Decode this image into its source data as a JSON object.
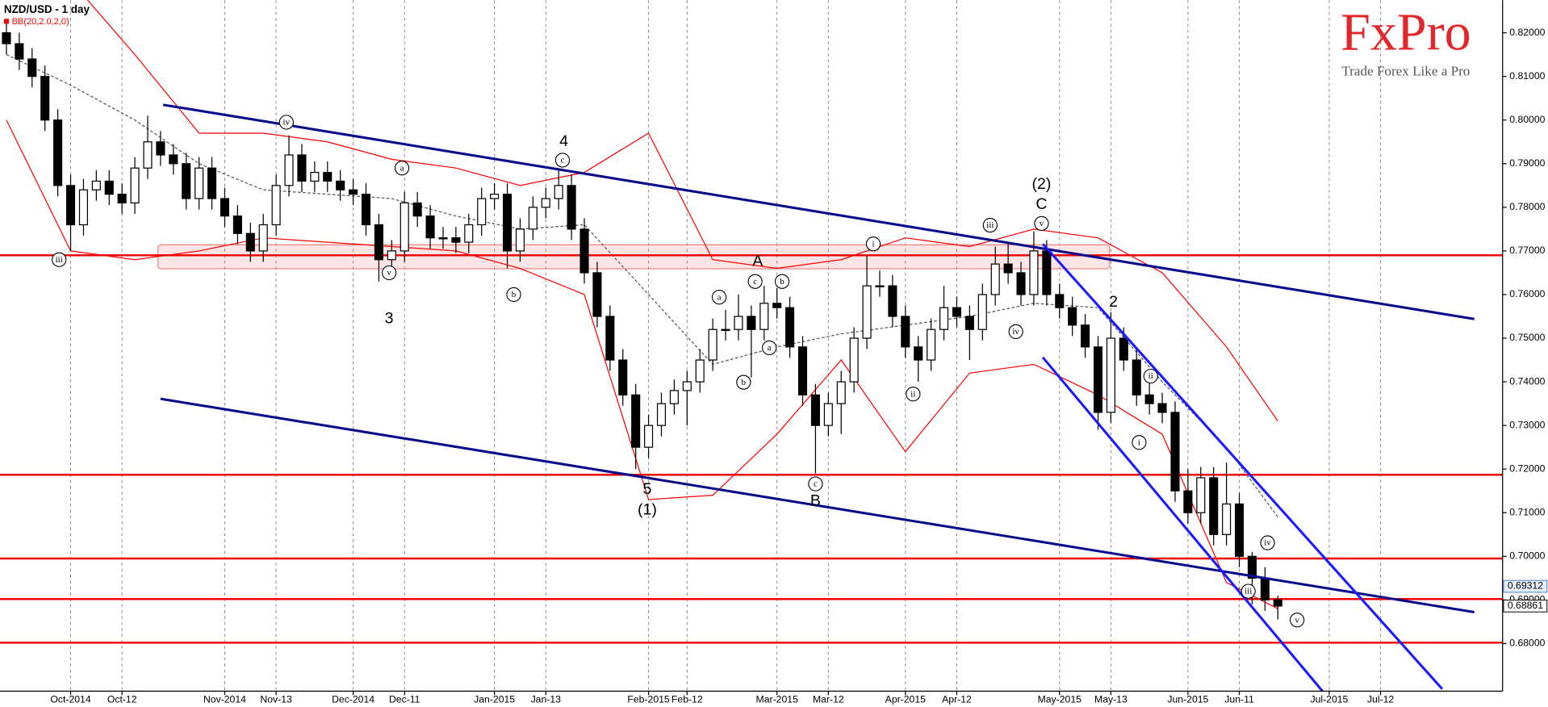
{
  "chart_data": {
    "type": "candlestick",
    "title": "NZD/USD - 1 day",
    "indicator": "BB(20,2.0,2,0)",
    "categories": [
      null,
      null,
      null,
      null,
      null,
      "Oct-2014",
      null,
      null,
      null,
      "Oct-12",
      null,
      null,
      null,
      null,
      null,
      null,
      null,
      "Nov-2014",
      null,
      null,
      null,
      "Nov-13",
      null,
      null,
      null,
      null,
      null,
      "Dec-2014",
      null,
      null,
      null,
      "Dec-11",
      null,
      null,
      null,
      null,
      null,
      null,
      "Jan-2015",
      null,
      null,
      null,
      "Jan-13",
      null,
      null,
      null,
      null,
      null,
      null,
      null,
      "Feb-2015",
      null,
      null,
      "Feb-12",
      null,
      null,
      null,
      null,
      null,
      null,
      "Mar-2015",
      null,
      null,
      null,
      "Mar-12",
      null,
      null,
      null,
      null,
      null,
      "Apr-2015",
      null,
      null,
      null,
      "Apr-12",
      null,
      null,
      null,
      null,
      null,
      null,
      null,
      "May-2015",
      null,
      null,
      null,
      "May-13",
      null,
      null,
      null,
      null,
      null,
      "Jun-2015",
      null,
      null,
      null,
      "Jun-11",
      null,
      null,
      null,
      null,
      null,
      null,
      "Jul-2015",
      null,
      null,
      null,
      "Jul-12",
      null,
      null,
      null,
      null,
      null,
      null,
      null,
      null,
      null
    ],
    "open": [
      0.82,
      0.8175,
      0.814,
      0.81,
      0.8,
      0.785,
      0.776,
      0.784,
      0.786,
      0.783,
      0.781,
      0.789,
      0.795,
      0.792,
      0.79,
      0.782,
      0.789,
      0.782,
      0.778,
      0.774,
      0.77,
      0.776,
      0.785,
      0.792,
      0.786,
      0.788,
      0.786,
      0.784,
      0.783,
      0.776,
      0.768,
      0.77,
      0.781,
      0.778,
      0.773,
      0.773,
      0.772,
      0.776,
      0.782,
      0.783,
      0.77,
      0.775,
      0.78,
      0.782,
      0.785,
      0.775,
      0.765,
      0.755,
      0.745,
      0.737,
      0.725,
      0.73,
      0.735,
      0.738,
      0.74,
      0.745,
      0.752,
      0.752,
      0.755,
      0.752,
      0.758,
      0.757,
      0.748,
      0.737,
      0.73,
      0.735,
      0.74,
      0.75,
      0.762,
      0.762,
      0.755,
      0.748,
      0.745,
      0.752,
      0.757,
      0.755,
      0.752,
      0.76,
      0.767,
      0.765,
      0.76,
      0.77,
      0.76,
      0.757,
      0.753,
      0.748,
      0.733,
      0.75,
      0.745,
      0.737,
      0.735,
      0.733,
      0.715,
      0.71,
      0.718,
      0.705,
      0.712,
      0.7,
      0.695,
      0.69,
      null,
      null,
      null,
      null,
      null,
      null,
      null,
      null,
      null,
      null,
      null,
      null,
      null,
      null,
      null,
      null,
      null
    ],
    "high": [
      0.8225,
      0.82,
      0.8165,
      0.8125,
      0.8025,
      0.7875,
      0.7865,
      0.7885,
      0.7885,
      0.7855,
      0.7915,
      0.801,
      0.7975,
      0.7945,
      0.7925,
      0.7915,
      0.7915,
      0.7845,
      0.7805,
      0.7765,
      0.7785,
      0.7875,
      0.7965,
      0.7945,
      0.7905,
      0.7905,
      0.7885,
      0.7865,
      0.7855,
      0.7785,
      0.7725,
      0.7835,
      0.7835,
      0.7805,
      0.7755,
      0.7755,
      0.7785,
      0.7845,
      0.7855,
      0.7855,
      0.7775,
      0.7825,
      0.7845,
      0.789,
      0.7875,
      0.7775,
      0.7675,
      0.7575,
      0.7475,
      0.7395,
      0.7325,
      0.7375,
      0.7405,
      0.7425,
      0.7475,
      0.7545,
      0.7565,
      0.76,
      0.7575,
      0.762,
      0.7615,
      0.7595,
      0.7505,
      0.7395,
      0.7375,
      0.7425,
      0.7525,
      0.769,
      0.7655,
      0.7645,
      0.7575,
      0.7505,
      0.7545,
      0.762,
      0.7595,
      0.7575,
      0.7625,
      0.771,
      0.772,
      0.7675,
      0.7745,
      0.7725,
      0.7625,
      0.7595,
      0.7555,
      0.7505,
      0.756,
      0.7525,
      0.7475,
      0.74,
      0.7375,
      0.7355,
      0.72,
      0.7205,
      0.7205,
      0.7215,
      0.7145,
      0.701,
      0.6975,
      0.691,
      null,
      null,
      null,
      null,
      null,
      null,
      null,
      null,
      null,
      null,
      null,
      null,
      null,
      null,
      null,
      null,
      null
    ],
    "low": [
      0.815,
      0.8115,
      0.8075,
      0.7975,
      0.7825,
      0.77,
      0.7735,
      0.7815,
      0.7805,
      0.7785,
      0.7785,
      0.7865,
      0.7895,
      0.7875,
      0.7795,
      0.7795,
      0.7795,
      0.7755,
      0.7715,
      0.7675,
      0.7675,
      0.7735,
      0.7825,
      0.7835,
      0.7835,
      0.7835,
      0.7815,
      0.7805,
      0.7735,
      0.763,
      0.7655,
      0.7675,
      0.7755,
      0.7705,
      0.7705,
      0.7695,
      0.7695,
      0.7735,
      0.7795,
      0.766,
      0.7675,
      0.7725,
      0.7775,
      0.7795,
      0.7725,
      0.7625,
      0.7525,
      0.7425,
      0.7345,
      0.72,
      0.7225,
      0.7275,
      0.7325,
      0.73,
      0.7375,
      0.7425,
      0.7495,
      0.7495,
      0.741,
      0.7495,
      0.7545,
      0.7455,
      0.7345,
      0.719,
      0.7275,
      0.728,
      0.7375,
      0.7475,
      0.7595,
      0.7525,
      0.7455,
      0.74,
      0.7425,
      0.7495,
      0.7525,
      0.745,
      0.7495,
      0.7575,
      0.7625,
      0.7575,
      0.7575,
      0.7575,
      0.7545,
      0.7505,
      0.7455,
      0.729,
      0.7305,
      0.7425,
      0.7345,
      0.7325,
      0.7305,
      0.7125,
      0.7075,
      0.7075,
      0.7025,
      0.7025,
      0.6975,
      0.689,
      0.6875,
      0.6855,
      null,
      null,
      null,
      null,
      null,
      null,
      null,
      null,
      null,
      null,
      null,
      null,
      null,
      null,
      null,
      null,
      null
    ],
    "close": [
      0.8175,
      0.814,
      0.81,
      0.8,
      0.785,
      0.776,
      0.784,
      0.786,
      0.783,
      0.781,
      0.789,
      0.795,
      0.792,
      0.79,
      0.782,
      0.789,
      0.782,
      0.778,
      0.774,
      0.77,
      0.776,
      0.785,
      0.792,
      0.786,
      0.788,
      0.786,
      0.784,
      0.783,
      0.776,
      0.768,
      0.77,
      0.781,
      0.778,
      0.773,
      0.773,
      0.772,
      0.776,
      0.782,
      0.783,
      0.77,
      0.775,
      0.78,
      0.782,
      0.785,
      0.775,
      0.765,
      0.755,
      0.745,
      0.737,
      0.725,
      0.73,
      0.735,
      0.738,
      0.74,
      0.745,
      0.752,
      0.752,
      0.755,
      0.752,
      0.758,
      0.757,
      0.748,
      0.737,
      0.73,
      0.735,
      0.74,
      0.75,
      0.762,
      0.762,
      0.755,
      0.748,
      0.745,
      0.752,
      0.757,
      0.755,
      0.752,
      0.76,
      0.767,
      0.765,
      0.76,
      0.77,
      0.76,
      0.757,
      0.753,
      0.748,
      0.733,
      0.75,
      0.745,
      0.737,
      0.735,
      0.733,
      0.715,
      0.71,
      0.718,
      0.705,
      0.712,
      0.7,
      0.695,
      0.69,
      0.6886,
      null,
      null,
      null,
      null,
      null,
      null,
      null,
      null,
      null,
      null,
      null,
      null,
      null,
      null,
      null,
      null,
      null
    ],
    "up_color": "#ffffff",
    "down_color": "#000000",
    "ylim": [
      0.6691,
      0.8275
    ],
    "yticks": [
      {
        "value": 0.82,
        "label": "0.82000"
      },
      {
        "value": 0.81,
        "label": "0.81000"
      },
      {
        "value": 0.8,
        "label": "0.80000"
      },
      {
        "value": 0.79,
        "label": "0.79000"
      },
      {
        "value": 0.78,
        "label": "0.78000"
      },
      {
        "value": 0.77,
        "label": "0.77000"
      },
      {
        "value": 0.76,
        "label": "0.76000"
      },
      {
        "value": 0.75,
        "label": "0.75000"
      },
      {
        "value": 0.74,
        "label": "0.74000"
      },
      {
        "value": 0.73,
        "label": "0.73000"
      },
      {
        "value": 0.72,
        "label": "0.72000"
      },
      {
        "value": 0.71,
        "label": "0.71000"
      },
      {
        "value": 0.7,
        "label": "0.70000"
      },
      {
        "value": 0.69,
        "label": "0.69000"
      },
      {
        "value": 0.68,
        "label": "0.68000"
      }
    ],
    "price_tags": [
      0.69312,
      0.68861
    ],
    "bollinger": {
      "color": "#ff0000",
      "middle_color": "#555555",
      "x": [
        0,
        5,
        10,
        15,
        20,
        25,
        30,
        35,
        40,
        45,
        50,
        55,
        60,
        65,
        70,
        75,
        80,
        85,
        90,
        95,
        99
      ],
      "upper": [
        0.84,
        0.832,
        0.815,
        0.797,
        0.797,
        0.795,
        0.791,
        0.789,
        0.785,
        0.788,
        0.797,
        0.768,
        0.766,
        0.768,
        0.773,
        0.771,
        0.775,
        0.773,
        0.765,
        0.748,
        0.731
      ],
      "middle": [
        0.815,
        0.808,
        0.8,
        0.79,
        0.784,
        0.783,
        0.782,
        0.778,
        0.775,
        0.776,
        0.76,
        0.744,
        0.748,
        0.751,
        0.753,
        0.755,
        0.758,
        0.757,
        0.74,
        0.725,
        0.709
      ],
      "lower": [
        0.8,
        0.77,
        0.768,
        0.77,
        0.773,
        0.772,
        0.771,
        0.77,
        0.766,
        0.76,
        0.713,
        0.714,
        0.728,
        0.745,
        0.724,
        0.742,
        0.744,
        0.737,
        0.728,
        0.694,
        0.688
      ]
    },
    "levels": {
      "color": "#ee0000",
      "values": [
        0.769,
        0.7187,
        0.6995,
        0.6902,
        0.6802
      ]
    },
    "zone": {
      "x": [
        11.8,
        85.9
      ],
      "y": [
        0.7714,
        0.7659
      ]
    },
    "trendlines": [
      {
        "color": "#0a0a8c",
        "x": [
          12.2,
          114.3
        ],
        "y": [
          0.8035,
          0.7544
        ]
      },
      {
        "color": "#0a0a8c",
        "x": [
          12.0,
          114.3
        ],
        "y": [
          0.7361,
          0.6872
        ]
      },
      {
        "color": "#1a1aff",
        "x": [
          80.7,
          111.8
        ],
        "y": [
          0.7716,
          0.6696
        ]
      },
      {
        "color": "#1a1aff",
        "x": [
          80.7,
          103.5
        ],
        "y": [
          0.7456,
          0.6655
        ]
      }
    ],
    "annotations": [
      {
        "text": "iii",
        "x": 4.1,
        "y": 0.768,
        "circled": true
      },
      {
        "text": "iv",
        "x": 21.8,
        "y": 0.7995,
        "circled": true
      },
      {
        "text": "v",
        "x": 29.8,
        "y": 0.765,
        "circled": true
      },
      {
        "text": "3",
        "x": 29.8,
        "y": 0.7544,
        "circled": false
      },
      {
        "text": "a",
        "x": 30.8,
        "y": 0.789,
        "circled": true
      },
      {
        "text": "b",
        "x": 39.5,
        "y": 0.76,
        "circled": true
      },
      {
        "text": "4",
        "x": 43.4,
        "y": 0.795,
        "circled": false
      },
      {
        "text": "c",
        "x": 43.3,
        "y": 0.7908,
        "circled": true
      },
      {
        "text": "5",
        "x": 49.9,
        "y": 0.7153,
        "circled": false
      },
      {
        "text": "(1)",
        "x": 49.9,
        "y": 0.7105,
        "circled": false
      },
      {
        "text": "A",
        "x": 58.5,
        "y": 0.7675,
        "circled": false
      },
      {
        "text": "a",
        "x": 55.5,
        "y": 0.7594,
        "circled": true
      },
      {
        "text": "c",
        "x": 58.3,
        "y": 0.763,
        "circled": true
      },
      {
        "text": "b",
        "x": 60.4,
        "y": 0.763,
        "circled": true
      },
      {
        "text": "a",
        "x": 59.4,
        "y": 0.7478,
        "circled": true
      },
      {
        "text": "b",
        "x": 57.4,
        "y": 0.7399,
        "circled": true
      },
      {
        "text": "c",
        "x": 63,
        "y": 0.7166,
        "circled": true
      },
      {
        "text": "B",
        "x": 63,
        "y": 0.7126,
        "circled": false
      },
      {
        "text": "i",
        "x": 67.5,
        "y": 0.7716,
        "circled": true
      },
      {
        "text": "ii",
        "x": 70.6,
        "y": 0.7372,
        "circled": true
      },
      {
        "text": "iii",
        "x": 76.6,
        "y": 0.7759,
        "circled": true
      },
      {
        "text": "iv",
        "x": 78.6,
        "y": 0.7515,
        "circled": true
      },
      {
        "text": "(2)",
        "x": 80.6,
        "y": 0.7852,
        "circled": false
      },
      {
        "text": "C",
        "x": 80.6,
        "y": 0.7806,
        "circled": false
      },
      {
        "text": "v",
        "x": 80.6,
        "y": 0.7763,
        "circled": true
      },
      {
        "text": "2",
        "x": 86.2,
        "y": 0.7582,
        "circled": false
      },
      {
        "text": "ii",
        "x": 89.1,
        "y": 0.7413,
        "circled": true
      },
      {
        "text": "i",
        "x": 88.2,
        "y": 0.7261,
        "circled": true
      },
      {
        "text": "iv",
        "x": 98.2,
        "y": 0.7031,
        "circled": true
      },
      {
        "text": "iii",
        "x": 96.7,
        "y": 0.692,
        "circled": true
      },
      {
        "text": "v",
        "x": 100.5,
        "y": 0.6854,
        "circled": true
      }
    ]
  },
  "logo": {
    "brand": "FxPro",
    "tagline": "Trade Forex Like a Pro"
  }
}
